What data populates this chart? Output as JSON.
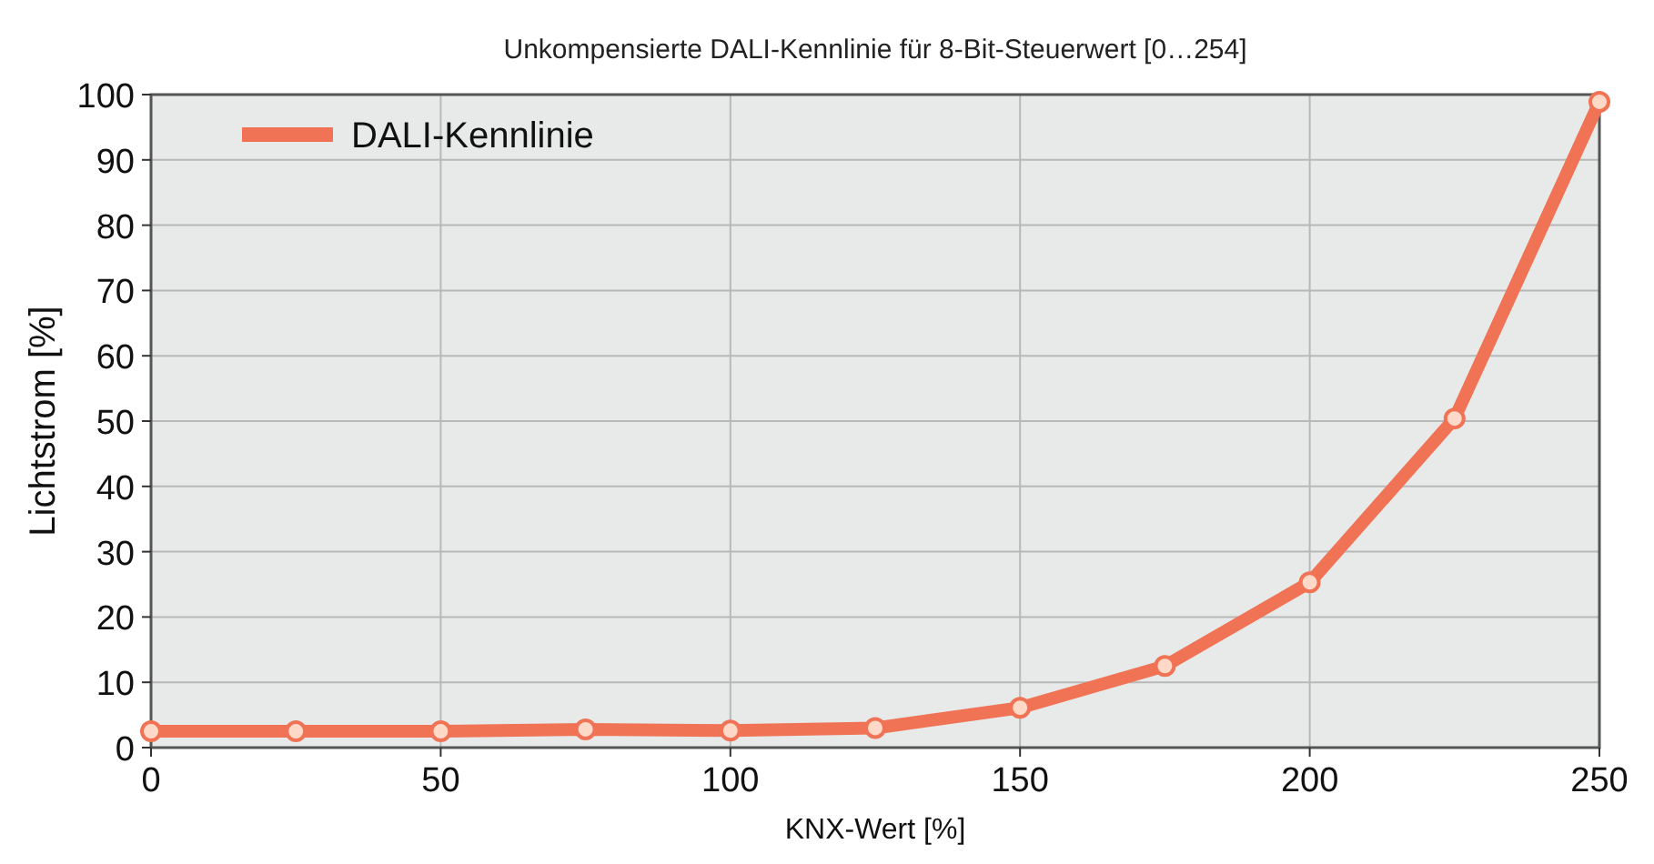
{
  "chart_data": {
    "type": "line",
    "title": "Unkompensierte DALI-Kennlinie für 8-Bit-Steuerwert [0…254]",
    "xlabel": "KNX-Wert [%]",
    "ylabel": "Lichtstrom [%]",
    "x": [
      0,
      25,
      50,
      75,
      100,
      125,
      150,
      175,
      200,
      225,
      250
    ],
    "series": [
      {
        "name": "DALI-Kennlinie",
        "color": "#f07355",
        "values": [
          2.5,
          2.5,
          2.5,
          2.8,
          2.6,
          3,
          6.1,
          12.5,
          25.3,
          50.4,
          98.9
        ]
      }
    ],
    "xlim": [
      0,
      250
    ],
    "xticks": [
      0,
      50,
      100,
      150,
      200,
      250
    ],
    "ylim": [
      0,
      100
    ],
    "yticks": [
      0,
      10,
      20,
      30,
      40,
      50,
      60,
      70,
      80,
      90,
      100
    ],
    "grid": true,
    "legend": "top left",
    "marker": "circle",
    "line_style": "solid"
  }
}
